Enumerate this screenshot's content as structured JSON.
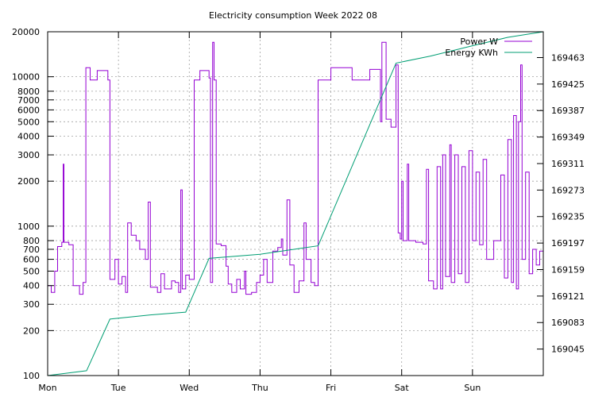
{
  "chart_data": {
    "type": "line",
    "title": "Electricity consumption Week 2022 08",
    "xlabel": "",
    "ylabel": "",
    "x_tick_labels": [
      "Mon",
      "Tue",
      "Wed",
      "Thu",
      "Fri",
      "Sat",
      "Sun"
    ],
    "x_range_days": [
      0,
      7
    ],
    "y_left": {
      "scale": "log",
      "range": [
        100,
        20000
      ],
      "tick_values": [
        100,
        200,
        300,
        400,
        500,
        600,
        700,
        800,
        1000,
        2000,
        3000,
        4000,
        5000,
        6000,
        7000,
        8000,
        10000,
        20000
      ],
      "tick_labels": [
        "100",
        "200",
        "300",
        "400",
        "500",
        "600",
        "700",
        "800",
        "1000",
        "2000",
        "3000",
        "4000",
        "5000",
        "6000",
        "7000",
        "8000",
        "10000",
        "20000"
      ]
    },
    "y_right": {
      "scale": "linear",
      "range": [
        169007,
        169500
      ],
      "tick_values": [
        169045,
        169083,
        169121,
        169159,
        169197,
        169235,
        169273,
        169311,
        169349,
        169387,
        169425,
        169463
      ],
      "tick_labels": [
        "169045",
        "169083",
        "169121",
        "169159",
        "169197",
        "169235",
        "169273",
        "169311",
        "169349",
        "169387",
        "169425",
        "169463"
      ]
    },
    "grid": true,
    "legend_position": "top-right",
    "series": [
      {
        "name": "Power W",
        "axis": "left",
        "color": "#9400d3",
        "points": [
          [
            0.0,
            400
          ],
          [
            0.05,
            360
          ],
          [
            0.1,
            500
          ],
          [
            0.14,
            730
          ],
          [
            0.2,
            780
          ],
          [
            0.22,
            2600
          ],
          [
            0.23,
            780
          ],
          [
            0.3,
            750
          ],
          [
            0.36,
            400
          ],
          [
            0.45,
            350
          ],
          [
            0.5,
            420
          ],
          [
            0.54,
            11500
          ],
          [
            0.6,
            9500
          ],
          [
            0.7,
            11000
          ],
          [
            0.85,
            9500
          ],
          [
            0.88,
            440
          ],
          [
            0.95,
            600
          ],
          [
            1.0,
            410
          ],
          [
            1.05,
            460
          ],
          [
            1.1,
            360
          ],
          [
            1.13,
            1050
          ],
          [
            1.18,
            870
          ],
          [
            1.25,
            800
          ],
          [
            1.3,
            700
          ],
          [
            1.38,
            600
          ],
          [
            1.42,
            1450
          ],
          [
            1.45,
            390
          ],
          [
            1.55,
            360
          ],
          [
            1.6,
            480
          ],
          [
            1.65,
            380
          ],
          [
            1.75,
            430
          ],
          [
            1.8,
            420
          ],
          [
            1.85,
            360
          ],
          [
            1.88,
            1750
          ],
          [
            1.9,
            380
          ],
          [
            1.95,
            470
          ],
          [
            2.0,
            440
          ],
          [
            2.07,
            9500
          ],
          [
            2.15,
            11000
          ],
          [
            2.28,
            9800
          ],
          [
            2.3,
            420
          ],
          [
            2.33,
            17000
          ],
          [
            2.35,
            9500
          ],
          [
            2.38,
            760
          ],
          [
            2.45,
            740
          ],
          [
            2.52,
            540
          ],
          [
            2.55,
            410
          ],
          [
            2.6,
            360
          ],
          [
            2.67,
            440
          ],
          [
            2.72,
            380
          ],
          [
            2.78,
            500
          ],
          [
            2.8,
            350
          ],
          [
            2.88,
            360
          ],
          [
            2.95,
            420
          ],
          [
            3.0,
            470
          ],
          [
            3.05,
            600
          ],
          [
            3.1,
            420
          ],
          [
            3.18,
            680
          ],
          [
            3.25,
            720
          ],
          [
            3.3,
            820
          ],
          [
            3.32,
            640
          ],
          [
            3.38,
            1500
          ],
          [
            3.42,
            550
          ],
          [
            3.48,
            360
          ],
          [
            3.55,
            430
          ],
          [
            3.62,
            1050
          ],
          [
            3.65,
            600
          ],
          [
            3.72,
            420
          ],
          [
            3.77,
            400
          ],
          [
            3.82,
            9500
          ],
          [
            4.0,
            11500
          ],
          [
            4.3,
            9500
          ],
          [
            4.55,
            11200
          ],
          [
            4.7,
            5000
          ],
          [
            4.72,
            17000
          ],
          [
            4.78,
            5200
          ],
          [
            4.85,
            4600
          ],
          [
            4.92,
            12000
          ],
          [
            4.95,
            900
          ],
          [
            4.98,
            820
          ],
          [
            5.0,
            2000
          ],
          [
            5.02,
            800
          ],
          [
            5.08,
            2600
          ],
          [
            5.1,
            800
          ],
          [
            5.2,
            780
          ],
          [
            5.3,
            760
          ],
          [
            5.35,
            2400
          ],
          [
            5.38,
            430
          ],
          [
            5.45,
            380
          ],
          [
            5.5,
            2500
          ],
          [
            5.55,
            380
          ],
          [
            5.58,
            3000
          ],
          [
            5.62,
            460
          ],
          [
            5.68,
            3500
          ],
          [
            5.7,
            420
          ],
          [
            5.75,
            3000
          ],
          [
            5.8,
            480
          ],
          [
            5.85,
            2500
          ],
          [
            5.9,
            420
          ],
          [
            5.95,
            3200
          ],
          [
            6.0,
            800
          ],
          [
            6.05,
            2300
          ],
          [
            6.1,
            750
          ],
          [
            6.15,
            2800
          ],
          [
            6.2,
            600
          ],
          [
            6.3,
            800
          ],
          [
            6.4,
            2200
          ],
          [
            6.45,
            450
          ],
          [
            6.5,
            3800
          ],
          [
            6.55,
            420
          ],
          [
            6.58,
            5500
          ],
          [
            6.62,
            380
          ],
          [
            6.65,
            5000
          ],
          [
            6.68,
            12000
          ],
          [
            6.7,
            600
          ],
          [
            6.75,
            2300
          ],
          [
            6.8,
            480
          ],
          [
            6.85,
            700
          ],
          [
            6.9,
            550
          ],
          [
            6.95,
            680
          ],
          [
            7.0,
            620
          ]
        ]
      },
      {
        "name": "Energy KWh",
        "axis": "right",
        "color": "#009e73",
        "points": [
          [
            0.0,
            169007
          ],
          [
            0.55,
            169014
          ],
          [
            0.88,
            169088
          ],
          [
            1.45,
            169094
          ],
          [
            1.95,
            169098
          ],
          [
            2.28,
            169175
          ],
          [
            3.0,
            169181
          ],
          [
            3.82,
            169193
          ],
          [
            4.92,
            169455
          ],
          [
            5.4,
            169465
          ],
          [
            6.0,
            169480
          ],
          [
            6.5,
            169492
          ],
          [
            7.0,
            169500
          ]
        ]
      }
    ]
  }
}
